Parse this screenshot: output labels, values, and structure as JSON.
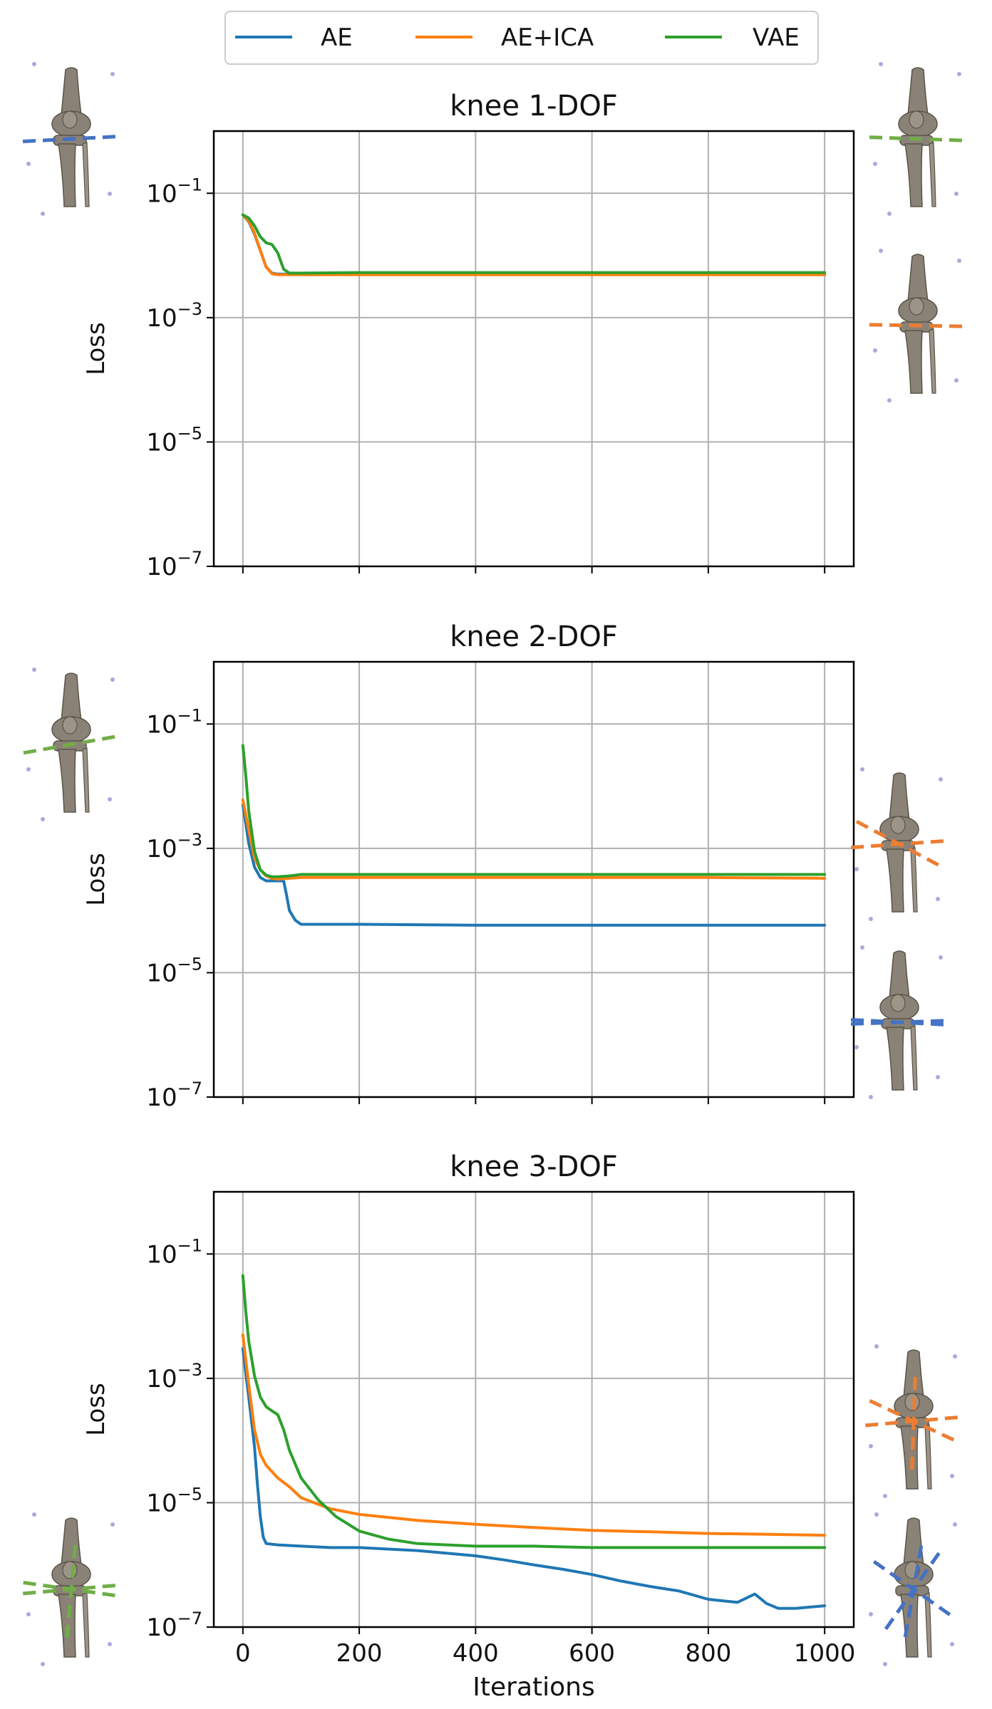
{
  "legend": {
    "placement": "top-center",
    "items": [
      {
        "label": "AE",
        "color": "#1f77b4"
      },
      {
        "label": "AE+ICA",
        "color": "#ff7f0e"
      },
      {
        "label": "VAE",
        "color": "#2ca02c"
      }
    ]
  },
  "colors": {
    "AE": "#1f77b4",
    "AE+ICA": "#ff7f0e",
    "VAE": "#2ca02c",
    "bone": "#8a8276",
    "bone_dark": "#5b5448",
    "dot": "#b0a6dc"
  },
  "icons": {
    "top-left": {
      "axes": [
        {
          "color": "#4472c4",
          "angle": 3
        }
      ]
    },
    "top-right-1": {
      "axes": [
        {
          "color": "#70ad47",
          "angle": -2
        }
      ]
    },
    "top-right-2": {
      "axes": [
        {
          "color": "#ed7d31",
          "angle": -1
        }
      ]
    },
    "mid-left": {
      "axes": [
        {
          "color": "#70ad47",
          "angle": 10
        }
      ]
    },
    "mid-right-1": {
      "axes": [
        {
          "color": "#ed7d31",
          "angle": -28
        },
        {
          "color": "#ed7d31",
          "angle": 4
        }
      ]
    },
    "mid-right-2": {
      "axes": [
        {
          "color": "#4472c4",
          "angle": -3
        },
        {
          "color": "#4472c4",
          "angle": 2
        }
      ]
    },
    "bot-right-1": {
      "axes": [
        {
          "color": "#ed7d31",
          "angle": -25
        },
        {
          "color": "#ed7d31",
          "angle": 5
        },
        {
          "color": "#ed7d31",
          "angle": 88
        }
      ]
    },
    "bot-right-2": {
      "axes": [
        {
          "color": "#4472c4",
          "angle": -35
        },
        {
          "color": "#4472c4",
          "angle": 55
        },
        {
          "color": "#4472c4",
          "angle": 80
        }
      ]
    },
    "bot-left": {
      "axes": [
        {
          "color": "#70ad47",
          "angle": 5
        },
        {
          "color": "#70ad47",
          "angle": -8
        },
        {
          "color": "#70ad47",
          "angle": 85
        }
      ]
    }
  },
  "chart_data": [
    {
      "type": "line",
      "title": "knee 1-DOF",
      "xlabel": "",
      "ylabel": "Loss",
      "yscale": "log",
      "xlim": [
        -50,
        1050
      ],
      "ylim": [
        1e-07,
        1
      ],
      "xticks": [
        0,
        200,
        400,
        600,
        800,
        1000
      ],
      "show_xtick_labels": false,
      "yticks": [
        {
          "value": 0.1,
          "base": "10",
          "exp": "−1"
        },
        {
          "value": 0.001,
          "base": "10",
          "exp": "−3"
        },
        {
          "value": 1e-05,
          "base": "10",
          "exp": "−5"
        },
        {
          "value": 1e-07,
          "base": "10",
          "exp": "−7"
        }
      ],
      "grid": true,
      "series": [
        {
          "name": "AE",
          "x": [
            0,
            10,
            20,
            30,
            40,
            50,
            60,
            80,
            200,
            1000
          ],
          "y": [
            0.045,
            0.035,
            0.022,
            0.012,
            0.0065,
            0.0052,
            0.005,
            0.005,
            0.005,
            0.005
          ]
        },
        {
          "name": "AE+ICA",
          "x": [
            0,
            10,
            20,
            30,
            40,
            50,
            60,
            80,
            200,
            1000
          ],
          "y": [
            0.045,
            0.036,
            0.023,
            0.012,
            0.0065,
            0.0051,
            0.0049,
            0.0049,
            0.0049,
            0.0049
          ]
        },
        {
          "name": "VAE",
          "x": [
            0,
            10,
            20,
            30,
            40,
            50,
            60,
            70,
            80,
            100,
            200,
            1000
          ],
          "y": [
            0.045,
            0.04,
            0.03,
            0.02,
            0.016,
            0.015,
            0.011,
            0.006,
            0.0052,
            0.0052,
            0.0053,
            0.0053
          ]
        }
      ]
    },
    {
      "type": "line",
      "title": "knee 2-DOF",
      "xlabel": "",
      "ylabel": "Loss",
      "yscale": "log",
      "xlim": [
        -50,
        1050
      ],
      "ylim": [
        1e-07,
        1
      ],
      "xticks": [
        0,
        200,
        400,
        600,
        800,
        1000
      ],
      "show_xtick_labels": false,
      "yticks": [
        {
          "value": 0.1,
          "base": "10",
          "exp": "−1"
        },
        {
          "value": 0.001,
          "base": "10",
          "exp": "−3"
        },
        {
          "value": 1e-05,
          "base": "10",
          "exp": "−5"
        },
        {
          "value": 1e-07,
          "base": "10",
          "exp": "−7"
        }
      ],
      "grid": true,
      "series": [
        {
          "name": "AE",
          "x": [
            0,
            5,
            10,
            20,
            30,
            40,
            60,
            70,
            75,
            80,
            90,
            100,
            200,
            400,
            600,
            800,
            1000
          ],
          "y": [
            0.005,
            0.0025,
            0.0012,
            0.0005,
            0.00034,
            0.0003,
            0.0003,
            0.0003,
            0.00018,
            0.0001,
            7e-05,
            6e-05,
            6e-05,
            5.8e-05,
            5.8e-05,
            5.8e-05,
            5.8e-05
          ]
        },
        {
          "name": "AE+ICA",
          "x": [
            0,
            10,
            20,
            30,
            40,
            50,
            60,
            80,
            100,
            200,
            400,
            600,
            800,
            1000
          ],
          "y": [
            0.006,
            0.002,
            0.0007,
            0.00045,
            0.00036,
            0.00033,
            0.00032,
            0.00033,
            0.00034,
            0.00034,
            0.00034,
            0.00034,
            0.00034,
            0.00033
          ]
        },
        {
          "name": "VAE",
          "x": [
            0,
            5,
            10,
            20,
            30,
            40,
            50,
            60,
            80,
            100,
            200,
            400,
            600,
            800,
            1000
          ],
          "y": [
            0.045,
            0.015,
            0.004,
            0.0009,
            0.00045,
            0.00037,
            0.00035,
            0.00035,
            0.00036,
            0.00038,
            0.00038,
            0.00038,
            0.00038,
            0.00038,
            0.00038
          ]
        }
      ]
    },
    {
      "type": "line",
      "title": "knee 3-DOF",
      "xlabel": "Iterations",
      "ylabel": "Loss",
      "yscale": "log",
      "xlim": [
        -50,
        1050
      ],
      "ylim": [
        1e-07,
        1
      ],
      "xticks": [
        0,
        200,
        400,
        600,
        800,
        1000
      ],
      "show_xtick_labels": true,
      "yticks": [
        {
          "value": 0.1,
          "base": "10",
          "exp": "−1"
        },
        {
          "value": 0.001,
          "base": "10",
          "exp": "−3"
        },
        {
          "value": 1e-05,
          "base": "10",
          "exp": "−5"
        },
        {
          "value": 1e-07,
          "base": "10",
          "exp": "−7"
        }
      ],
      "grid": true,
      "series": [
        {
          "name": "AE",
          "x": [
            0,
            5,
            10,
            20,
            25,
            30,
            35,
            40,
            60,
            100,
            150,
            200,
            300,
            400,
            450,
            500,
            550,
            600,
            650,
            700,
            750,
            800,
            850,
            880,
            900,
            920,
            950,
            1000
          ],
          "y": [
            0.003,
            0.0012,
            0.0005,
            8e-05,
            2e-05,
            6e-06,
            2.8e-06,
            2.2e-06,
            2.1e-06,
            2e-06,
            1.9e-06,
            1.9e-06,
            1.7e-06,
            1.4e-06,
            1.2e-06,
            1e-06,
            8.5e-07,
            7e-07,
            5.5e-07,
            4.5e-07,
            3.8e-07,
            2.8e-07,
            2.5e-07,
            3.4e-07,
            2.4e-07,
            2e-07,
            2e-07,
            2.2e-07
          ]
        },
        {
          "name": "AE+ICA",
          "x": [
            0,
            10,
            20,
            30,
            40,
            60,
            80,
            100,
            150,
            200,
            300,
            400,
            500,
            600,
            700,
            800,
            900,
            1000
          ],
          "y": [
            0.005,
            0.0008,
            0.00015,
            6e-05,
            4e-05,
            2.5e-05,
            1.8e-05,
            1.2e-05,
            8e-06,
            6.5e-06,
            5.2e-06,
            4.5e-06,
            4e-06,
            3.6e-06,
            3.4e-06,
            3.2e-06,
            3.1e-06,
            3e-06
          ]
        },
        {
          "name": "VAE",
          "x": [
            0,
            5,
            10,
            20,
            30,
            40,
            50,
            60,
            70,
            80,
            100,
            130,
            160,
            200,
            250,
            300,
            400,
            500,
            600,
            700,
            800,
            900,
            1000
          ],
          "y": [
            0.045,
            0.012,
            0.004,
            0.0011,
            0.0005,
            0.00035,
            0.0003,
            0.00026,
            0.00015,
            7e-05,
            2.5e-05,
            1.1e-05,
            6e-06,
            3.5e-06,
            2.6e-06,
            2.2e-06,
            2e-06,
            2e-06,
            1.9e-06,
            1.9e-06,
            1.9e-06,
            1.9e-06,
            1.9e-06
          ]
        }
      ]
    }
  ]
}
